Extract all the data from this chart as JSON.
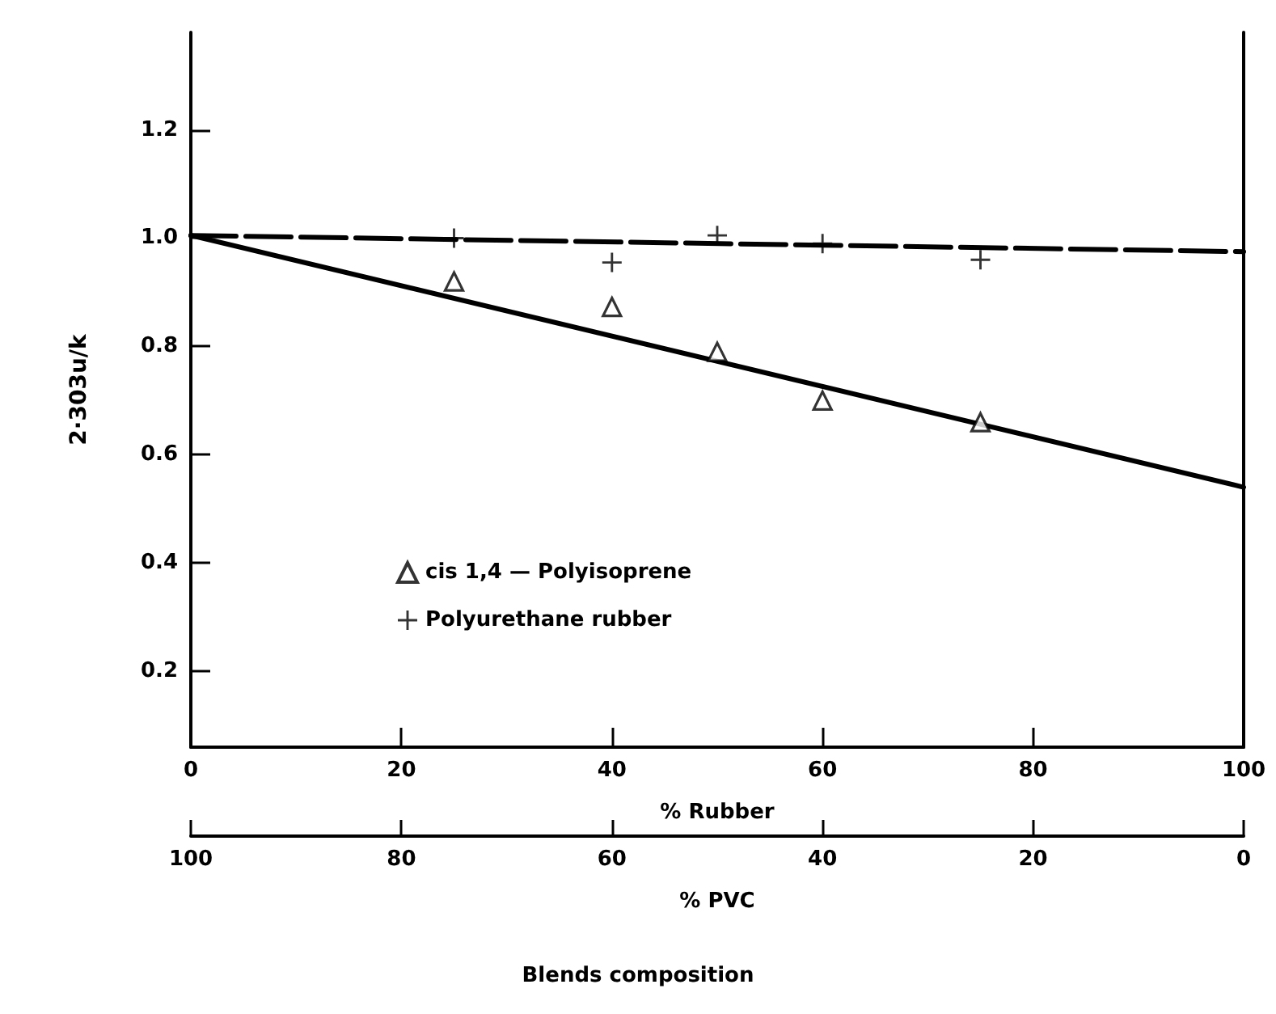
{
  "chart_data": {
    "type": "scatter",
    "ylabel": "2·303u/k",
    "xlabel": "% Rubber",
    "x2label": "% PVC",
    "annotations": [
      "Blends composition"
    ],
    "xlim": [
      0,
      100
    ],
    "xticks": [
      0,
      20,
      40,
      60,
      80,
      100
    ],
    "x2lim": [
      100,
      0
    ],
    "x2ticks": [
      100,
      80,
      60,
      40,
      20,
      0
    ],
    "ylim": [
      0.06,
      1.38
    ],
    "yticks": [
      0.2,
      0.4,
      0.6,
      0.8,
      {
        "value": 1.0,
        "label": "1.0"
      },
      1.2
    ],
    "grid": false,
    "legend": "center",
    "series": [
      {
        "name": "cis 1,4 — Polyisoprene",
        "color": "#000000",
        "marker": "triangle",
        "x": [
          25,
          40,
          50,
          60,
          75
        ],
        "values": [
          0.92,
          0.873,
          0.79,
          0.7,
          0.66
        ]
      },
      {
        "name": "Polyurethane rubber",
        "color": "#000000",
        "marker": "cross",
        "x": [
          25,
          40,
          50,
          60,
          75
        ],
        "values": [
          1.0,
          0.955,
          1.005,
          0.99,
          0.96
        ]
      },
      {
        "type": "line",
        "color": "#000000",
        "marker": "none",
        "line_style": "solid",
        "x": [
          0,
          100
        ],
        "values": [
          1.005,
          0.54
        ]
      },
      {
        "type": "line",
        "color": "#000000",
        "marker": "none",
        "line_style": "dashed",
        "x": [
          0,
          100
        ],
        "values": [
          1.005,
          0.975
        ]
      }
    ]
  }
}
